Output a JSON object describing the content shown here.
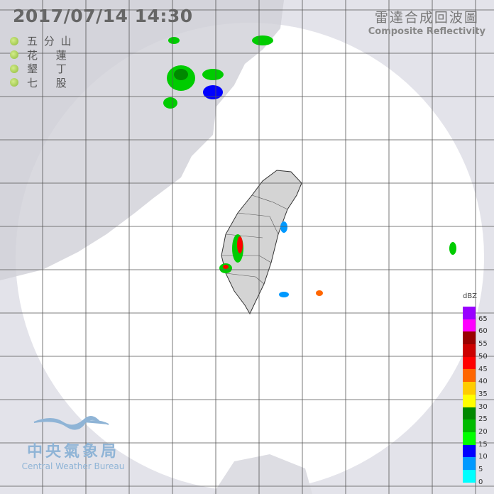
{
  "header": {
    "datetime": "2017/07/14  14:30",
    "product_zh": "雷達合成回波圖",
    "product_en": "Composite Reflectivity"
  },
  "stations": [
    {
      "name": "五 分 山"
    },
    {
      "name": "花　 蓮"
    },
    {
      "name": "墾　 丁"
    },
    {
      "name": "七　 股"
    }
  ],
  "legend": {
    "unit": "dBZ",
    "levels": [
      {
        "value": "65",
        "color": "#9900ff"
      },
      {
        "value": "60",
        "color": "#ff00ff"
      },
      {
        "value": "55",
        "color": "#990000"
      },
      {
        "value": "50",
        "color": "#cc0000"
      },
      {
        "value": "45",
        "color": "#ff0000"
      },
      {
        "value": "40",
        "color": "#ff6600"
      },
      {
        "value": "35",
        "color": "#ffcc00"
      },
      {
        "value": "30",
        "color": "#ffff00"
      },
      {
        "value": "25",
        "color": "#008800"
      },
      {
        "value": "20",
        "color": "#00bb00"
      },
      {
        "value": "15",
        "color": "#00ff00"
      },
      {
        "value": "10",
        "color": "#0000ff"
      },
      {
        "value": "5",
        "color": "#0099ff"
      },
      {
        "value": "0",
        "color": "#00ffff"
      }
    ]
  },
  "logo": {
    "zh": "中央氣象局",
    "en": "Central Weather Bureau"
  }
}
